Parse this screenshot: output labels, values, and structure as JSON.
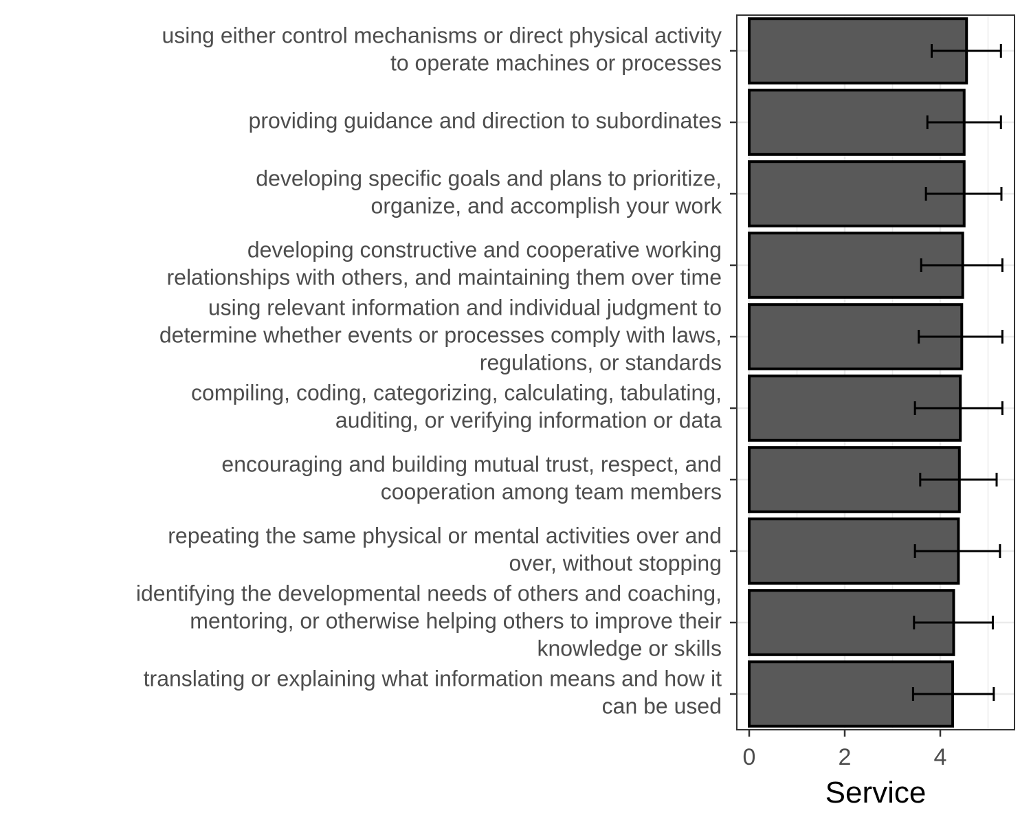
{
  "chart_data": {
    "type": "bar",
    "orientation": "horizontal",
    "title": "",
    "xlabel": "Service",
    "ylabel": "",
    "xlim": [
      -0.25,
      5.55
    ],
    "xticks": [
      "0",
      "2",
      "4"
    ],
    "grid": true,
    "legend": "none",
    "colors": {
      "bar_fill": "#595959",
      "bar_stroke": "#000000",
      "error_bar": "#000000",
      "grid": "#ebebeb",
      "tick_text": "#4d4d4d",
      "label_text": "#000000"
    },
    "categories": [
      [
        "using either control mechanisms or direct physical activity",
        "to operate machines or processes"
      ],
      [
        "providing guidance and direction to subordinates"
      ],
      [
        "developing specific goals and plans to prioritize,",
        "organize, and accomplish your work"
      ],
      [
        "developing constructive and cooperative working",
        "relationships with others, and maintaining them over time"
      ],
      [
        "using relevant information and individual judgment to",
        "determine whether events or processes comply with laws,",
        "regulations, or standards"
      ],
      [
        "compiling, coding, categorizing, calculating, tabulating,",
        "auditing, or verifying information or data"
      ],
      [
        "encouraging and building mutual trust, respect, and",
        "cooperation among team members"
      ],
      [
        "repeating the same physical or mental activities over and",
        "over, without stopping"
      ],
      [
        "identifying the developmental needs of others and coaching,",
        "mentoring, or otherwise helping others to improve their",
        "knowledge or skills"
      ],
      [
        "translating or explaining what information means and how it",
        "can be used"
      ]
    ],
    "values": [
      4.55,
      4.5,
      4.5,
      4.47,
      4.45,
      4.42,
      4.4,
      4.38,
      4.28,
      4.26
    ],
    "error_low": [
      3.82,
      3.73,
      3.7,
      3.6,
      3.55,
      3.47,
      3.58,
      3.47,
      3.45,
      3.43
    ],
    "error_high": [
      5.27,
      5.27,
      5.28,
      5.3,
      5.3,
      5.3,
      5.18,
      5.25,
      5.1,
      5.12
    ]
  }
}
